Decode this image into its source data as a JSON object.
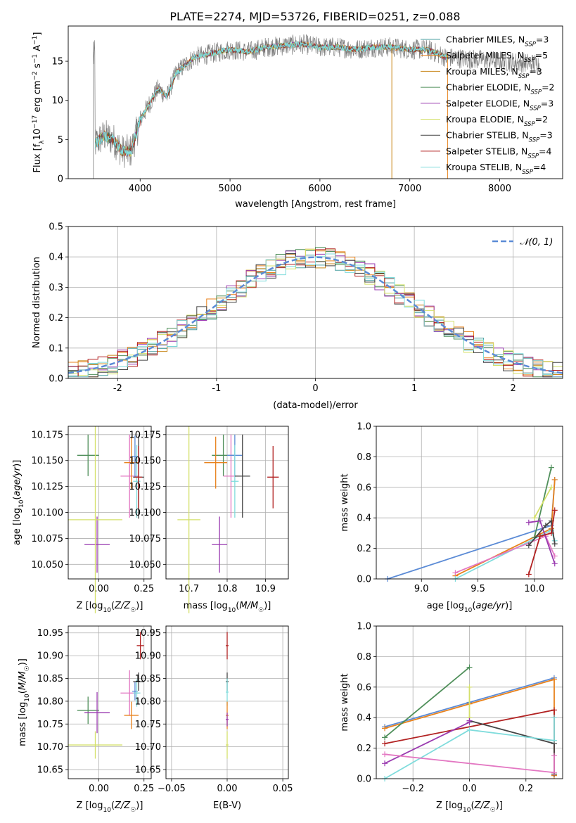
{
  "figure": {
    "title": "PLATE=2274, MJD=53726, FIBERID=0251, z=0.088"
  },
  "chart_data": [
    {
      "id": "spectrum",
      "type": "line",
      "xlabel": "wavelength [Angstrom, rest frame]",
      "ylabel": "Flux [f_λ10^-17 erg cm^-2 s^-1 A^-1]",
      "xlim": [
        3200,
        8700
      ],
      "ylim": [
        0,
        19.5
      ],
      "xticks": [
        4000,
        5000,
        6000,
        7000,
        8000
      ],
      "yticks": [
        0,
        5,
        10,
        15
      ],
      "grid": false,
      "legend_position": "right",
      "series": [
        {
          "name": "Chabrier MILES, N_SSP=3",
          "color": "#4a9fa0"
        },
        {
          "name": "Salpeter MILES, N_SSP=5",
          "color": "#e8821c"
        },
        {
          "name": "Kroupa MILES, N_SSP=3",
          "color": "#c8861a"
        },
        {
          "name": "Chabrier ELODIE, N_SSP=2",
          "color": "#4f8f5a"
        },
        {
          "name": "Salpeter ELODIE, N_SSP=3",
          "color": "#9a3bb0"
        },
        {
          "name": "Kroupa ELODIE, N_SSP=2",
          "color": "#d4e06a"
        },
        {
          "name": "Chabrier STELIB, N_SSP=3",
          "color": "#444444"
        },
        {
          "name": "Salpeter STELIB, N_SSP=4",
          "color": "#b22222"
        },
        {
          "name": "Kroupa STELIB, N_SSP=4",
          "color": "#7fdcdc"
        }
      ],
      "continuum": {
        "x": [
          3500,
          3600,
          3700,
          3800,
          3900,
          4000,
          4100,
          4200,
          4300,
          4400,
          4500,
          4600,
          4800,
          5000,
          5200,
          5400,
          5600,
          5800,
          6000,
          6200,
          6400,
          6600,
          6800,
          7000,
          7200,
          7300,
          7400
        ],
        "y": [
          4.5,
          5.5,
          5.0,
          3.5,
          3.5,
          7.5,
          9.5,
          11.5,
          10.5,
          13.5,
          14.5,
          15.5,
          16.0,
          16.5,
          16.2,
          16.8,
          17.0,
          17.2,
          16.8,
          16.8,
          16.5,
          16.8,
          16.8,
          16.5,
          16.5,
          16.0,
          15.5
        ]
      }
    },
    {
      "id": "residuals",
      "type": "line",
      "xlabel": "(data-model)/error",
      "ylabel": "Normed distribution",
      "xlim": [
        -2.5,
        2.5
      ],
      "ylim": [
        0,
        0.5
      ],
      "xticks": [
        -2,
        -1,
        0,
        1,
        2
      ],
      "yticks": [
        0.0,
        0.1,
        0.2,
        0.3,
        0.4,
        0.5
      ],
      "grid": true,
      "legend": [
        "𝒩(0, 1)"
      ],
      "legend_position": "upper right",
      "normal_curve": {
        "mean": 0,
        "sigma": 1,
        "color": "#5b8bd6"
      },
      "bin_width": 0.1
    },
    {
      "id": "age_vs_Z",
      "type": "scatter",
      "xlabel": "Z [log10(Z/Z☉)]",
      "ylabel": "age [log10(age/yr)]",
      "xlim": [
        -0.17,
        0.29
      ],
      "ylim": [
        10.036,
        10.183
      ],
      "xticks": [
        -0.0,
        0.25
      ],
      "xticklabels": [
        "0.00",
        "0.25"
      ],
      "yticks": [
        10.05,
        10.075,
        10.1,
        10.125,
        10.15,
        10.175
      ],
      "grid": true,
      "points": [
        {
          "x": -0.06,
          "y": 10.155,
          "xerr": 0.06,
          "yerr": 0.02,
          "color": "#4f8f5a"
        },
        {
          "x": -0.01,
          "y": 10.069,
          "xerr": 0.07,
          "yerr": 0.027,
          "color": "#9a3bb0"
        },
        {
          "x": -0.02,
          "y": 10.093,
          "xerr": 0.15,
          "yerr": 0.09,
          "color": "#d4e06a"
        },
        {
          "x": 0.17,
          "y": 10.135,
          "xerr": 0.05,
          "yerr": 0.04,
          "color": "#e377c2"
        },
        {
          "x": 0.18,
          "y": 10.148,
          "xerr": 0.04,
          "yerr": 0.025,
          "color": "#e8821c"
        },
        {
          "x": 0.2,
          "y": 10.154,
          "xerr": 0.015,
          "yerr": 0.02,
          "color": "#5b8bd6"
        },
        {
          "x": 0.21,
          "y": 10.13,
          "xerr": 0.02,
          "yerr": 0.035,
          "color": "#7fdcdc"
        },
        {
          "x": 0.22,
          "y": 10.134,
          "xerr": 0.03,
          "yerr": 0.04,
          "color": "#444444"
        },
        {
          "x": 0.22,
          "y": 10.134,
          "xerr": 0.02,
          "yerr": 0.03,
          "color": "#b22222"
        }
      ]
    },
    {
      "id": "age_vs_mass",
      "type": "scatter",
      "xlabel": "mass [log10(M/M☉)]",
      "ylabel": "",
      "xlim": [
        10.64,
        10.96
      ],
      "ylim": [
        10.036,
        10.183
      ],
      "xticks": [
        10.7,
        10.8,
        10.9
      ],
      "xticklabels": [
        "10.7",
        "10.8",
        "10.9"
      ],
      "yticks": [
        10.05,
        10.075,
        10.1,
        10.125,
        10.15,
        10.175
      ],
      "grid": true,
      "points": [
        {
          "x": 10.79,
          "y": 10.155,
          "xerr": 0.03,
          "yerr": 0.02,
          "color": "#4f8f5a"
        },
        {
          "x": 10.78,
          "y": 10.069,
          "xerr": 0.02,
          "yerr": 0.027,
          "color": "#9a3bb0"
        },
        {
          "x": 10.7,
          "y": 10.093,
          "xerr": 0.03,
          "yerr": 0.09,
          "color": "#d4e06a"
        },
        {
          "x": 10.81,
          "y": 10.135,
          "xerr": 0.02,
          "yerr": 0.04,
          "color": "#e377c2"
        },
        {
          "x": 10.77,
          "y": 10.148,
          "xerr": 0.03,
          "yerr": 0.025,
          "color": "#e8821c"
        },
        {
          "x": 10.82,
          "y": 10.155,
          "xerr": 0.02,
          "yerr": 0.02,
          "color": "#5b8bd6"
        },
        {
          "x": 10.82,
          "y": 10.13,
          "xerr": 0.01,
          "yerr": 0.035,
          "color": "#7fdcdc"
        },
        {
          "x": 10.84,
          "y": 10.135,
          "xerr": 0.02,
          "yerr": 0.04,
          "color": "#444444"
        },
        {
          "x": 10.92,
          "y": 10.134,
          "xerr": 0.015,
          "yerr": 0.03,
          "color": "#b22222"
        }
      ]
    },
    {
      "id": "mass_weight_vs_age",
      "type": "line",
      "xlabel": "age [log10(age/yr)]",
      "ylabel": "mass weight",
      "xlim": [
        8.6,
        10.25
      ],
      "ylim": [
        0,
        1
      ],
      "xticks": [
        9.0,
        9.5,
        10.0
      ],
      "xticklabels": [
        "9.0",
        "9.5",
        "10.0"
      ],
      "yticks": [
        0.0,
        0.2,
        0.4,
        0.6,
        0.8,
        1.0
      ],
      "grid": true,
      "series": [
        {
          "color": "#5b8bd6",
          "x": [
            8.7,
            10.15,
            10.18
          ],
          "y": [
            0.0,
            0.35,
            0.65
          ]
        },
        {
          "color": "#e8821c",
          "x": [
            9.3,
            10.15,
            10.18
          ],
          "y": [
            0.02,
            0.33,
            0.65
          ]
        },
        {
          "color": "#7fdcdc",
          "x": [
            9.3,
            10.15,
            10.18
          ],
          "y": [
            0.0,
            0.32,
            0.25
          ]
        },
        {
          "color": "#e377c2",
          "x": [
            9.3,
            10.1,
            10.18
          ],
          "y": [
            0.04,
            0.28,
            0.15
          ]
        },
        {
          "color": "#4f8f5a",
          "x": [
            10.0,
            10.15
          ],
          "y": [
            0.27,
            0.73
          ]
        },
        {
          "color": "#9a3bb0",
          "x": [
            9.95,
            10.05,
            10.18
          ],
          "y": [
            0.37,
            0.38,
            0.1
          ]
        },
        {
          "color": "#d4e06a",
          "x": [
            10.0,
            10.15
          ],
          "y": [
            0.4,
            0.6
          ]
        },
        {
          "color": "#444444",
          "x": [
            9.95,
            10.1,
            10.15,
            10.18
          ],
          "y": [
            0.22,
            0.35,
            0.38,
            0.23
          ]
        },
        {
          "color": "#b22222",
          "x": [
            9.95,
            10.05,
            10.15,
            10.18
          ],
          "y": [
            0.03,
            0.28,
            0.3,
            0.45
          ]
        }
      ]
    },
    {
      "id": "mass_vs_Z",
      "type": "scatter",
      "xlabel": "Z [log10(Z/Z☉)]",
      "ylabel": "mass [log10(M/M☉)]",
      "xlim": [
        -0.17,
        0.29
      ],
      "ylim": [
        10.63,
        10.965
      ],
      "xticks": [
        0.0,
        0.25
      ],
      "xticklabels": [
        "0.00",
        "0.25"
      ],
      "yticks": [
        10.65,
        10.7,
        10.75,
        10.8,
        10.85,
        10.9,
        10.95
      ],
      "grid": true,
      "points": [
        {
          "x": -0.06,
          "y": 10.78,
          "xerr": 0.06,
          "yerr": 0.03,
          "color": "#4f8f5a"
        },
        {
          "x": -0.01,
          "y": 10.775,
          "xerr": 0.07,
          "yerr": 0.045,
          "color": "#9a3bb0"
        },
        {
          "x": -0.02,
          "y": 10.704,
          "xerr": 0.15,
          "yerr": 0.03,
          "color": "#d4e06a"
        },
        {
          "x": 0.17,
          "y": 10.818,
          "xerr": 0.05,
          "yerr": 0.05,
          "color": "#e377c2"
        },
        {
          "x": 0.18,
          "y": 10.769,
          "xerr": 0.04,
          "yerr": 0.03,
          "color": "#e8821c"
        },
        {
          "x": 0.2,
          "y": 10.822,
          "xerr": 0.015,
          "yerr": 0.02,
          "color": "#5b8bd6"
        },
        {
          "x": 0.21,
          "y": 10.818,
          "xerr": 0.02,
          "yerr": 0.03,
          "color": "#7fdcdc"
        },
        {
          "x": 0.22,
          "y": 10.843,
          "xerr": 0.03,
          "yerr": 0.02,
          "color": "#444444"
        },
        {
          "x": 0.23,
          "y": 10.922,
          "xerr": 0.02,
          "yerr": 0.03,
          "color": "#b22222"
        }
      ]
    },
    {
      "id": "mass_vs_EBV",
      "type": "scatter",
      "xlabel": "E(B-V)",
      "ylabel": "",
      "xlim": [
        -0.055,
        0.055
      ],
      "ylim": [
        10.63,
        10.965
      ],
      "xticks": [
        -0.05,
        0.0,
        0.05
      ],
      "xticklabels": [
        "−0.05",
        "0.00",
        "0.05"
      ],
      "yticks": [
        10.65,
        10.7,
        10.75,
        10.8,
        10.85,
        10.9,
        10.95
      ],
      "grid": true,
      "points": [
        {
          "x": 0.0,
          "y": 10.922,
          "xerr": 0.0,
          "yerr": 0.03,
          "color": "#b22222"
        },
        {
          "x": 0.0,
          "y": 10.843,
          "xerr": 0.0,
          "yerr": 0.02,
          "color": "#444444"
        },
        {
          "x": 0.0,
          "y": 10.82,
          "xerr": 0.0,
          "yerr": 0.03,
          "color": "#7fdcdc"
        },
        {
          "x": 0.0,
          "y": 10.769,
          "xerr": 0.0,
          "yerr": 0.03,
          "color": "#e8821c"
        },
        {
          "x": 0.0,
          "y": 10.76,
          "xerr": 0.0,
          "yerr": 0.015,
          "color": "#9a3bb0"
        },
        {
          "x": 0.0,
          "y": 10.704,
          "xerr": 0.0,
          "yerr": 0.03,
          "color": "#d4e06a"
        }
      ]
    },
    {
      "id": "mass_weight_vs_Z",
      "type": "line",
      "xlabel": "Z [log10(Z/Z☉)]",
      "ylabel": "mass weight",
      "xlim": [
        -0.33,
        0.33
      ],
      "ylim": [
        0,
        1
      ],
      "xticks": [
        -0.2,
        0.0,
        0.2
      ],
      "xticklabels": [
        "−0.2",
        "0.0",
        "0.2"
      ],
      "yticks": [
        0.0,
        0.2,
        0.4,
        0.6,
        0.8,
        1.0
      ],
      "grid": true,
      "series": [
        {
          "color": "#5b8bd6",
          "x": [
            -0.3,
            0.0,
            0.3
          ],
          "y": [
            0.34,
            0.5,
            0.66
          ]
        },
        {
          "color": "#e8821c",
          "x": [
            -0.3,
            0.0,
            0.3,
            0.3
          ],
          "y": [
            0.33,
            0.49,
            0.65,
            0.02
          ]
        },
        {
          "color": "#4f8f5a",
          "x": [
            -0.3,
            0.0
          ],
          "y": [
            0.27,
            0.73
          ]
        },
        {
          "color": "#d4e06a",
          "x": [
            0.0,
            0.0
          ],
          "y": [
            0.4,
            0.6
          ]
        },
        {
          "color": "#b22222",
          "x": [
            -0.3,
            0.3,
            0.3
          ],
          "y": [
            0.23,
            0.45,
            0.03
          ]
        },
        {
          "color": "#444444",
          "x": [
            0.0,
            0.3,
            0.3
          ],
          "y": [
            0.38,
            0.23,
            0.03
          ]
        },
        {
          "color": "#9a3bb0",
          "x": [
            -0.3,
            0.0,
            0.0
          ],
          "y": [
            0.1,
            0.37,
            0.38
          ]
        },
        {
          "color": "#7fdcdc",
          "x": [
            -0.3,
            0.0,
            0.3,
            0.3
          ],
          "y": [
            0.0,
            0.32,
            0.25,
            0.4
          ]
        },
        {
          "color": "#e377c2",
          "x": [
            -0.3,
            0.3,
            0.3
          ],
          "y": [
            0.16,
            0.04,
            0.15
          ]
        }
      ]
    }
  ]
}
